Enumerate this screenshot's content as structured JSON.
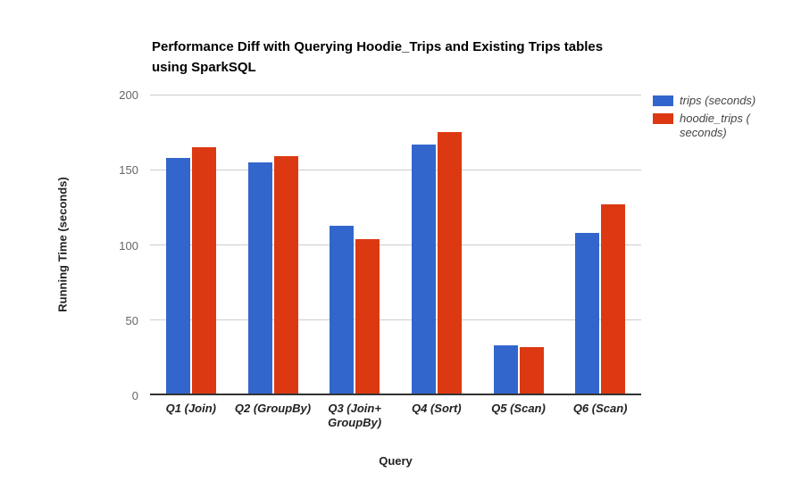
{
  "chart_data": {
    "type": "bar",
    "title": "Performance Diff with Querying Hoodie_Trips and Existing Trips tables using SparkSQL",
    "title_lines": [
      "Performance Diff with Querying Hoodie_Trips and Existing Trips tables",
      "using SparkSQL"
    ],
    "xlabel": "Query",
    "ylabel": "Running Time (seconds)",
    "categories": [
      "Q1 (Join)",
      "Q2 (GroupBy)",
      "Q3 (Join+\nGroupBy)",
      "Q4 (Sort)",
      "Q5 (Scan)",
      "Q6 (Scan)"
    ],
    "series": [
      {
        "name": "trips (seconds)",
        "color": "#3366CC",
        "values": [
          158,
          155,
          113,
          167,
          33,
          108
        ]
      },
      {
        "name": "hoodie_trips (seconds)",
        "color": "#DC3912",
        "values": [
          165,
          159,
          104,
          175,
          32,
          127
        ]
      }
    ],
    "ylim": [
      0,
      200
    ],
    "yticks": [
      0,
      50,
      100,
      150,
      200
    ],
    "grid": true,
    "legend_position": "right"
  },
  "legend": {
    "entries": [
      {
        "label": "trips (seconds)",
        "swatch_color": "#3366CC"
      },
      {
        "label": "hoodie_trips (\nseconds)",
        "swatch_color": "#DC3912"
      }
    ]
  },
  "colors": {
    "gridline": "#cccccc",
    "axis_line": "#333333",
    "tick_label": "#666666",
    "category_label": "#222222",
    "series_blue": "#3366CC",
    "series_red": "#DC3912"
  }
}
